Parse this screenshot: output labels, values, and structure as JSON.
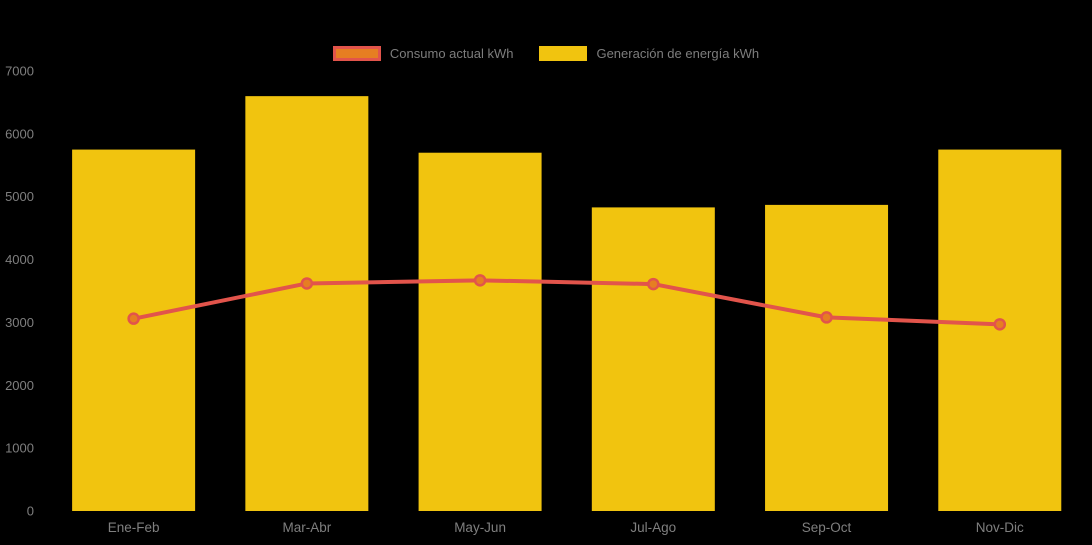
{
  "page": {
    "background": "#000000"
  },
  "legend": {
    "position": "top-center",
    "text_color": "#7d7d7d",
    "items": [
      {
        "label": "Consumo actual kWh",
        "swatch_fill": "#e67e22",
        "swatch_border": "#e2544b"
      },
      {
        "label": "Generación de energía kWh",
        "swatch_fill": "#f1c40f",
        "swatch_border": "#f1c40f"
      }
    ]
  },
  "chart_data": {
    "type": "bar+line",
    "title": "",
    "xlabel": "",
    "ylabel": "",
    "categories": [
      "Ene-Feb",
      "Mar-Abr",
      "May-Jun",
      "Jul-Ago",
      "Sep-Oct",
      "Nov-Dic"
    ],
    "series": [
      {
        "name": "Consumo actual kWh",
        "type": "line",
        "color": "#e2544b",
        "marker_fill": "#e67e22",
        "marker_stroke": "#e2544b",
        "values": [
          3060,
          3620,
          3670,
          3610,
          3080,
          2970
        ]
      },
      {
        "name": "Generación de energía kWh",
        "type": "bar",
        "color": "#f1c40f",
        "values": [
          5750,
          6600,
          5700,
          4830,
          4870,
          5750
        ]
      }
    ],
    "ylim": [
      0,
      7000
    ],
    "yticks": [
      0,
      1000,
      2000,
      3000,
      4000,
      5000,
      6000,
      7000
    ],
    "grid": false,
    "axis_text_color": "#7f7f7f",
    "legend_position": "top-center",
    "background": "#000000"
  }
}
